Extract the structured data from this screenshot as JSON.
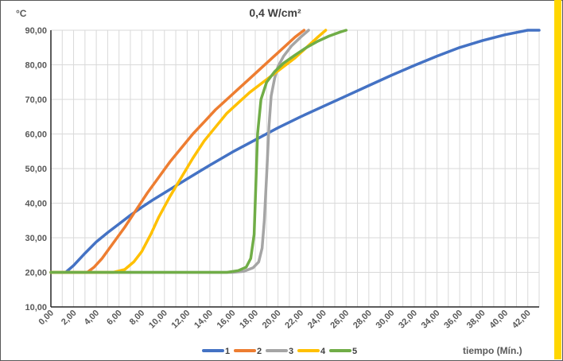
{
  "chart_data": {
    "type": "line",
    "title": "0,4 W/cm²",
    "ylabel": "°C",
    "xlabel": "tiempo (Mín.)",
    "xlim": [
      0,
      43
    ],
    "ylim": [
      10,
      90
    ],
    "x_ticks": [
      "0,00",
      "2,00",
      "4,00",
      "6,00",
      "8,00",
      "10,00",
      "12,00",
      "14,00",
      "16,00",
      "18,00",
      "20,00",
      "22,00",
      "24,00",
      "26,00",
      "28,00",
      "30,00",
      "32,00",
      "34,00",
      "36,00",
      "38,00",
      "40,00",
      "42,00"
    ],
    "y_ticks": [
      "10,00",
      "20,00",
      "30,00",
      "40,00",
      "50,00",
      "60,00",
      "70,00",
      "80,00",
      "90,00"
    ],
    "grid": true,
    "legend_position": "bottom",
    "series": [
      {
        "name": "1",
        "color": "#4472c4",
        "points": [
          [
            0,
            20
          ],
          [
            1.3,
            20
          ],
          [
            2,
            22
          ],
          [
            3,
            25.5
          ],
          [
            4,
            28.8
          ],
          [
            5,
            31.5
          ],
          [
            6,
            34
          ],
          [
            7,
            36.5
          ],
          [
            8,
            38.8
          ],
          [
            9,
            41
          ],
          [
            10,
            43
          ],
          [
            12,
            47
          ],
          [
            14,
            51
          ],
          [
            16,
            54.8
          ],
          [
            18,
            58.3
          ],
          [
            20,
            61.8
          ],
          [
            22,
            65
          ],
          [
            24,
            68
          ],
          [
            26,
            71
          ],
          [
            28,
            74
          ],
          [
            30,
            77
          ],
          [
            32,
            79.8
          ],
          [
            34,
            82.5
          ],
          [
            36,
            85
          ],
          [
            38,
            87
          ],
          [
            40,
            88.7
          ],
          [
            42,
            90
          ],
          [
            43,
            90
          ]
        ]
      },
      {
        "name": "2",
        "color": "#ed7d31",
        "points": [
          [
            0,
            20
          ],
          [
            3.2,
            20
          ],
          [
            3.8,
            21.5
          ],
          [
            4.5,
            24
          ],
          [
            5.5,
            28.5
          ],
          [
            6.5,
            33
          ],
          [
            7.5,
            38
          ],
          [
            8.5,
            43
          ],
          [
            9.5,
            47.5
          ],
          [
            10.5,
            52
          ],
          [
            11.5,
            56
          ],
          [
            12.5,
            60
          ],
          [
            13.5,
            63.5
          ],
          [
            14.5,
            67
          ],
          [
            15.5,
            70
          ],
          [
            16.5,
            73
          ],
          [
            17.5,
            76
          ],
          [
            18.5,
            79
          ],
          [
            19.5,
            82
          ],
          [
            20.5,
            85
          ],
          [
            21.5,
            88
          ],
          [
            22.3,
            90
          ]
        ]
      },
      {
        "name": "3",
        "color": "#a5a5a5",
        "points": [
          [
            0,
            20
          ],
          [
            16,
            20
          ],
          [
            17,
            20.3
          ],
          [
            17.8,
            21.3
          ],
          [
            18.3,
            23
          ],
          [
            18.6,
            27
          ],
          [
            18.8,
            35
          ],
          [
            19,
            48
          ],
          [
            19.2,
            62
          ],
          [
            19.4,
            71
          ],
          [
            19.7,
            76
          ],
          [
            20,
            79.5
          ],
          [
            20.5,
            82.5
          ],
          [
            21.2,
            85.5
          ],
          [
            22,
            88
          ],
          [
            22.7,
            90
          ]
        ]
      },
      {
        "name": "4",
        "color": "#ffc000",
        "points": [
          [
            0,
            20
          ],
          [
            5.5,
            20
          ],
          [
            6.5,
            20.8
          ],
          [
            7.3,
            23
          ],
          [
            8,
            26
          ],
          [
            8.8,
            31
          ],
          [
            9.5,
            36
          ],
          [
            10.5,
            42
          ],
          [
            11.5,
            47.5
          ],
          [
            12.5,
            53
          ],
          [
            13.5,
            58
          ],
          [
            14.5,
            62
          ],
          [
            15.5,
            66
          ],
          [
            16.5,
            69
          ],
          [
            17.5,
            72
          ],
          [
            18.5,
            74.5
          ],
          [
            19.5,
            77
          ],
          [
            20.5,
            79.5
          ],
          [
            21.5,
            82
          ],
          [
            22.5,
            85
          ],
          [
            23.5,
            88
          ],
          [
            24.2,
            90
          ]
        ]
      },
      {
        "name": "5",
        "color": "#70ad47",
        "points": [
          [
            0,
            20
          ],
          [
            15.5,
            20
          ],
          [
            16.5,
            20.5
          ],
          [
            17.2,
            21.5
          ],
          [
            17.6,
            24
          ],
          [
            17.9,
            31
          ],
          [
            18.05,
            45
          ],
          [
            18.2,
            60
          ],
          [
            18.5,
            70
          ],
          [
            19,
            75
          ],
          [
            19.7,
            78
          ],
          [
            20.5,
            80.5
          ],
          [
            21.5,
            82.8
          ],
          [
            22.5,
            85
          ],
          [
            23.5,
            86.8
          ],
          [
            24.5,
            88.3
          ],
          [
            25.5,
            89.5
          ],
          [
            26,
            90
          ]
        ]
      }
    ]
  }
}
